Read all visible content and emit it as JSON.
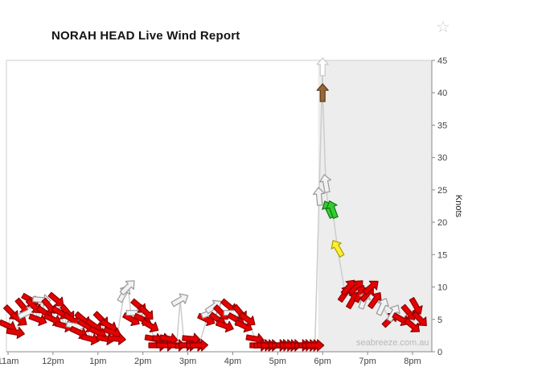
{
  "page": {
    "title": "NORAH HEAD Live Wind Report",
    "favorite_star": "☆"
  },
  "chart_data": {
    "type": "scatter",
    "title": "NORAH HEAD Live Wind Report",
    "ylabel": "Knots",
    "xlabel": "",
    "watermark": "seabreeze.com.au",
    "ylim": [
      0,
      45
    ],
    "y_ticks": [
      0,
      5,
      10,
      15,
      20,
      25,
      30,
      35,
      40,
      45
    ],
    "x_tick_labels": [
      "11am",
      "12pm",
      "1pm",
      "2pm",
      "3pm",
      "4pm",
      "5pm",
      "6pm",
      "7pm",
      "8pm"
    ],
    "x_tick_hours": [
      11,
      12,
      13,
      14,
      15,
      16,
      17,
      18,
      19,
      20
    ],
    "x_range_hours": [
      11,
      20.4
    ],
    "grid": "off",
    "legend": "off",
    "shaded_region_start_hour": 17.9,
    "point_format": [
      "hour_24h_decimal",
      "wind_speed_knots",
      "arrow_direction_deg_screen_0up_cw",
      "color_key"
    ],
    "points": [
      [
        11.0,
        4,
        115,
        "r"
      ],
      [
        11.08,
        6,
        135,
        "r"
      ],
      [
        11.17,
        3,
        100,
        "r"
      ],
      [
        11.25,
        5,
        125,
        "r"
      ],
      [
        11.33,
        7,
        140,
        "r"
      ],
      [
        11.42,
        6,
        65,
        "w"
      ],
      [
        11.5,
        8,
        120,
        "r"
      ],
      [
        11.58,
        7,
        135,
        "r"
      ],
      [
        11.67,
        5,
        110,
        "r"
      ],
      [
        11.75,
        8,
        95,
        "w"
      ],
      [
        11.83,
        6,
        125,
        "r"
      ],
      [
        11.92,
        7,
        140,
        "r"
      ],
      [
        12.0,
        5,
        115,
        "r"
      ],
      [
        12.08,
        8,
        130,
        "r"
      ],
      [
        12.17,
        6,
        120,
        "r"
      ],
      [
        12.25,
        4,
        105,
        "r"
      ],
      [
        12.33,
        6,
        140,
        "r"
      ],
      [
        12.42,
        5,
        125,
        "r"
      ],
      [
        12.5,
        4,
        100,
        "w"
      ],
      [
        12.58,
        3,
        115,
        "r"
      ],
      [
        12.67,
        5,
        130,
        "r"
      ],
      [
        12.75,
        4,
        120,
        "r"
      ],
      [
        12.83,
        2,
        105,
        "r"
      ],
      [
        12.92,
        4,
        125,
        "r"
      ],
      [
        13.0,
        3,
        115,
        "r"
      ],
      [
        13.08,
        5,
        135,
        "r"
      ],
      [
        13.17,
        2,
        100,
        "r"
      ],
      [
        13.25,
        4,
        120,
        "r"
      ],
      [
        13.33,
        3,
        110,
        "r"
      ],
      [
        13.42,
        2,
        95,
        "r"
      ],
      [
        13.58,
        9,
        30,
        "w"
      ],
      [
        13.67,
        10,
        45,
        "w"
      ],
      [
        13.75,
        5,
        120,
        "r"
      ],
      [
        13.83,
        6,
        90,
        "w"
      ],
      [
        13.92,
        7,
        130,
        "r"
      ],
      [
        14.0,
        5,
        115,
        "r"
      ],
      [
        14.08,
        6,
        135,
        "r"
      ],
      [
        14.17,
        4,
        120,
        "r"
      ],
      [
        14.25,
        2,
        100,
        "r"
      ],
      [
        14.33,
        1,
        90,
        "r"
      ],
      [
        14.42,
        2,
        95,
        "r"
      ],
      [
        14.5,
        1,
        90,
        "r"
      ],
      [
        14.58,
        2,
        100,
        "r"
      ],
      [
        14.75,
        1,
        90,
        "r"
      ],
      [
        14.83,
        8,
        60,
        "w"
      ],
      [
        14.92,
        1,
        85,
        "r"
      ],
      [
        15.0,
        1,
        90,
        "r"
      ],
      [
        15.08,
        2,
        95,
        "r"
      ],
      [
        15.17,
        1,
        90,
        "r"
      ],
      [
        15.25,
        1,
        88,
        "r"
      ],
      [
        15.42,
        5,
        115,
        "r"
      ],
      [
        15.5,
        6,
        70,
        "w"
      ],
      [
        15.58,
        7,
        55,
        "w"
      ],
      [
        15.67,
        5,
        125,
        "r"
      ],
      [
        15.75,
        6,
        135,
        "r"
      ],
      [
        15.83,
        4,
        110,
        "r"
      ],
      [
        15.92,
        7,
        130,
        "r"
      ],
      [
        16.0,
        6,
        90,
        "w"
      ],
      [
        16.08,
        5,
        120,
        "r"
      ],
      [
        16.17,
        6,
        140,
        "r"
      ],
      [
        16.25,
        4,
        115,
        "r"
      ],
      [
        16.33,
        5,
        125,
        "r"
      ],
      [
        16.5,
        2,
        100,
        "r"
      ],
      [
        16.58,
        1,
        90,
        "r"
      ],
      [
        16.67,
        1,
        88,
        "r"
      ],
      [
        16.75,
        1,
        92,
        "r"
      ],
      [
        16.83,
        1,
        90,
        "r"
      ],
      [
        17.0,
        1,
        90,
        "r"
      ],
      [
        17.08,
        1,
        88,
        "r"
      ],
      [
        17.17,
        1,
        90,
        "r"
      ],
      [
        17.25,
        1,
        92,
        "r"
      ],
      [
        17.33,
        1,
        90,
        "r"
      ],
      [
        17.5,
        1,
        90,
        "r"
      ],
      [
        17.58,
        1,
        88,
        "r"
      ],
      [
        17.67,
        1,
        90,
        "r"
      ],
      [
        17.75,
        1,
        90,
        "r"
      ],
      [
        17.83,
        1,
        90,
        "r"
      ],
      [
        17.92,
        24,
        355,
        "w"
      ],
      [
        18.0,
        44,
        0,
        "o"
      ],
      [
        18.0,
        40,
        0,
        "b"
      ],
      [
        18.07,
        26,
        350,
        "w"
      ],
      [
        18.13,
        22,
        335,
        "g"
      ],
      [
        18.22,
        22,
        340,
        "g"
      ],
      [
        18.33,
        16,
        330,
        "y"
      ],
      [
        18.5,
        9,
        35,
        "r"
      ],
      [
        18.58,
        10,
        40,
        "r"
      ],
      [
        18.67,
        8,
        30,
        "r"
      ],
      [
        18.75,
        10,
        45,
        "r"
      ],
      [
        18.83,
        9,
        25,
        "r"
      ],
      [
        18.92,
        8,
        20,
        "w"
      ],
      [
        19.0,
        9,
        40,
        "r"
      ],
      [
        19.08,
        10,
        50,
        "r"
      ],
      [
        19.17,
        8,
        35,
        "r"
      ],
      [
        19.33,
        7,
        25,
        "w"
      ],
      [
        19.5,
        5,
        45,
        "r"
      ],
      [
        19.58,
        6,
        30,
        "w"
      ],
      [
        19.75,
        5,
        120,
        "r"
      ],
      [
        19.92,
        6,
        140,
        "r"
      ],
      [
        20.0,
        4,
        130,
        "r"
      ],
      [
        20.08,
        7,
        150,
        "r"
      ],
      [
        20.17,
        5,
        135,
        "r"
      ]
    ],
    "arrow_colors": {
      "r": {
        "fill": "#e60000",
        "stroke": "#8b0000"
      },
      "w": {
        "fill": "#f2f2f2",
        "stroke": "#999999"
      },
      "g": {
        "fill": "#33cc33",
        "stroke": "#117711"
      },
      "y": {
        "fill": "#ffee33",
        "stroke": "#a8a000"
      },
      "b": {
        "fill": "#996633",
        "stroke": "#5c3d1e"
      },
      "o": {
        "fill": "#ffffff",
        "stroke": "#c8c8c8"
      }
    },
    "line_color": "#cccccc",
    "shaded_color": "#ededed",
    "axis_color": "#888888",
    "border_color": "#cccccc",
    "tick_label_color": "#444444",
    "watermark_color": "#b8b8b8",
    "title_color": "#141414"
  }
}
